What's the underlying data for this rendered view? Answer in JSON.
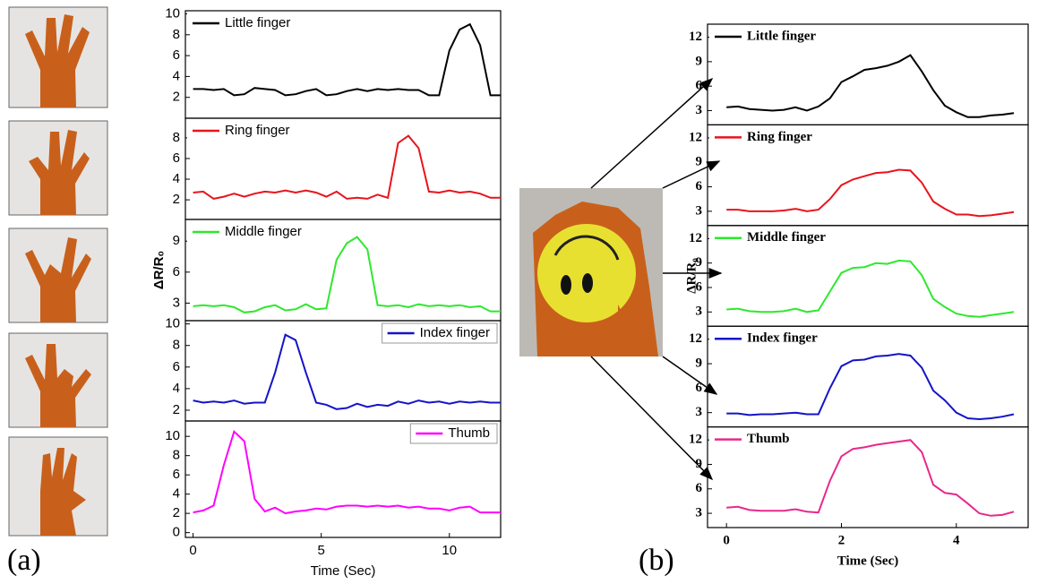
{
  "panel_labels": [
    "(a)",
    "(b)"
  ],
  "chart_data": [
    {
      "type": "line",
      "x": [
        0,
        0.4,
        0.8,
        1.2,
        1.6,
        2,
        2.4,
        2.8,
        3.2,
        3.6,
        4,
        4.4,
        4.8,
        5.2,
        5.6,
        6,
        6.4,
        6.8,
        7.2,
        7.6,
        8,
        8.4,
        8.8,
        9.2,
        9.6,
        10,
        10.4,
        10.8,
        11.2,
        11.6,
        12
      ],
      "xlim": [
        -0.3,
        12
      ],
      "ylim": [
        0,
        10.3
      ],
      "yticks": [
        2,
        4,
        6,
        8,
        10
      ],
      "legend": "upper left",
      "series": [
        {
          "name": "Little finger",
          "color": "#000000",
          "values": [
            2.8,
            2.8,
            2.7,
            2.8,
            2.2,
            2.3,
            2.9,
            2.8,
            2.7,
            2.2,
            2.3,
            2.6,
            2.8,
            2.2,
            2.3,
            2.6,
            2.8,
            2.6,
            2.8,
            2.7,
            2.8,
            2.7,
            2.7,
            2.2,
            2.2,
            6.5,
            8.5,
            9.0,
            7.0,
            2.2,
            2.2
          ]
        }
      ]
    },
    {
      "type": "line",
      "x": [
        0,
        0.4,
        0.8,
        1.2,
        1.6,
        2,
        2.4,
        2.8,
        3.2,
        3.6,
        4,
        4.4,
        4.8,
        5.2,
        5.6,
        6,
        6.4,
        6.8,
        7.2,
        7.6,
        8,
        8.4,
        8.8,
        9.2,
        9.6,
        10,
        10.4,
        10.8,
        11.2,
        11.6,
        12
      ],
      "xlim": [
        -0.3,
        12
      ],
      "ylim": [
        0.1,
        9.9
      ],
      "yticks": [
        2,
        4,
        6,
        8
      ],
      "legend": "upper left",
      "series": [
        {
          "name": "Ring finger",
          "color": "#e8141c",
          "values": [
            2.7,
            2.8,
            2.1,
            2.3,
            2.6,
            2.3,
            2.6,
            2.8,
            2.7,
            2.9,
            2.7,
            2.9,
            2.7,
            2.3,
            2.8,
            2.1,
            2.2,
            2.1,
            2.5,
            2.2,
            7.5,
            8.2,
            7.0,
            2.8,
            2.7,
            2.9,
            2.7,
            2.8,
            2.6,
            2.2,
            2.2
          ]
        }
      ]
    },
    {
      "type": "line",
      "x": [
        0,
        0.4,
        0.8,
        1.2,
        1.6,
        2,
        2.4,
        2.8,
        3.2,
        3.6,
        4,
        4.4,
        4.8,
        5.2,
        5.6,
        6,
        6.4,
        6.8,
        7.2,
        7.6,
        8,
        8.4,
        8.8,
        9.2,
        9.6,
        10,
        10.4,
        10.8,
        11.2,
        11.6,
        12
      ],
      "xlim": [
        -0.3,
        12
      ],
      "ylim": [
        1.3,
        11.1
      ],
      "yticks": [
        3,
        6,
        9
      ],
      "legend": "upper left",
      "ylabel": "ΔR/R₀",
      "series": [
        {
          "name": "Middle finger",
          "color": "#2ee82e",
          "values": [
            2.7,
            2.8,
            2.7,
            2.8,
            2.6,
            2.1,
            2.2,
            2.6,
            2.8,
            2.3,
            2.4,
            2.9,
            2.4,
            2.5,
            7.2,
            8.8,
            9.4,
            8.2,
            2.8,
            2.7,
            2.8,
            2.6,
            2.9,
            2.7,
            2.8,
            2.7,
            2.8,
            2.6,
            2.7,
            2.2,
            2.2
          ]
        }
      ]
    },
    {
      "type": "line",
      "x": [
        0,
        0.4,
        0.8,
        1.2,
        1.6,
        2,
        2.4,
        2.8,
        3.2,
        3.6,
        4,
        4.4,
        4.8,
        5.2,
        5.6,
        6,
        6.4,
        6.8,
        7.2,
        7.6,
        8,
        8.4,
        8.8,
        9.2,
        9.6,
        10,
        10.4,
        10.8,
        11.2,
        11.6,
        12
      ],
      "xlim": [
        -0.3,
        12
      ],
      "ylim": [
        1,
        10.3
      ],
      "yticks": [
        2,
        4,
        6,
        8,
        10
      ],
      "legend": "upper right",
      "series": [
        {
          "name": "Index finger",
          "color": "#1414c8",
          "values": [
            2.9,
            2.7,
            2.8,
            2.7,
            2.9,
            2.6,
            2.7,
            2.7,
            5.5,
            9.0,
            8.5,
            5.5,
            2.7,
            2.5,
            2.1,
            2.2,
            2.6,
            2.3,
            2.5,
            2.4,
            2.8,
            2.6,
            2.9,
            2.7,
            2.8,
            2.6,
            2.8,
            2.7,
            2.8,
            2.7,
            2.7
          ]
        }
      ]
    },
    {
      "type": "line",
      "x": [
        0,
        0.4,
        0.8,
        1.2,
        1.6,
        2,
        2.4,
        2.8,
        3.2,
        3.6,
        4,
        4.4,
        4.8,
        5.2,
        5.6,
        6,
        6.4,
        6.8,
        7.2,
        7.6,
        8,
        8.4,
        8.8,
        9.2,
        9.6,
        10,
        10.4,
        10.8,
        11.2,
        11.6,
        12
      ],
      "xlim": [
        -0.3,
        12
      ],
      "ylim": [
        -0.5,
        11.6
      ],
      "yticks": [
        0,
        2,
        4,
        6,
        8,
        10
      ],
      "legend": "upper right",
      "xticks": [
        0,
        5,
        10
      ],
      "xlabel": "Time (Sec)",
      "series": [
        {
          "name": "Thumb",
          "color": "#ff00ff",
          "values": [
            2.1,
            2.3,
            2.8,
            7.0,
            10.5,
            9.5,
            3.5,
            2.2,
            2.6,
            2.0,
            2.2,
            2.3,
            2.5,
            2.4,
            2.7,
            2.8,
            2.8,
            2.7,
            2.8,
            2.7,
            2.8,
            2.6,
            2.7,
            2.5,
            2.5,
            2.3,
            2.6,
            2.7,
            2.1,
            2.1,
            2.1
          ]
        }
      ]
    },
    {
      "type": "line",
      "x": [
        0,
        0.2,
        0.4,
        0.6,
        0.8,
        1,
        1.2,
        1.4,
        1.6,
        1.8,
        2,
        2.2,
        2.4,
        2.6,
        2.8,
        3,
        3.2,
        3.4,
        3.6,
        3.8,
        4,
        4.2,
        4.4,
        4.6,
        4.8,
        5
      ],
      "xlim": [
        -0.33,
        5.25
      ],
      "ylim": [
        1.25,
        13.6
      ],
      "yticks": [
        3,
        6,
        9,
        12
      ],
      "legend": "upper left",
      "series": [
        {
          "name": "Little finger",
          "color": "#000000",
          "values": [
            3.4,
            3.5,
            3.2,
            3.1,
            3.0,
            3.1,
            3.4,
            3.0,
            3.5,
            4.5,
            6.5,
            7.2,
            8,
            8.2,
            8.5,
            9,
            9.8,
            7.8,
            5.5,
            3.6,
            2.8,
            2.2,
            2.2,
            2.4,
            2.5,
            2.7
          ]
        }
      ]
    },
    {
      "type": "line",
      "x": [
        0,
        0.2,
        0.4,
        0.6,
        0.8,
        1,
        1.2,
        1.4,
        1.6,
        1.8,
        2,
        2.2,
        2.4,
        2.6,
        2.8,
        3,
        3.2,
        3.4,
        3.6,
        3.8,
        4,
        4.2,
        4.4,
        4.6,
        4.8,
        5
      ],
      "xlim": [
        -0.33,
        5.25
      ],
      "ylim": [
        1.25,
        13.6
      ],
      "yticks": [
        3,
        6,
        9,
        12
      ],
      "legend": "upper left",
      "series": [
        {
          "name": "Ring finger",
          "color": "#e8141c",
          "values": [
            3.2,
            3.2,
            3.0,
            3.0,
            3.0,
            3.1,
            3.3,
            3.0,
            3.2,
            4.5,
            6.2,
            6.9,
            7.3,
            7.7,
            7.8,
            8.1,
            8.0,
            6.5,
            4.2,
            3.3,
            2.6,
            2.6,
            2.4,
            2.5,
            2.7,
            2.9
          ]
        }
      ]
    },
    {
      "type": "line",
      "x": [
        0,
        0.2,
        0.4,
        0.6,
        0.8,
        1,
        1.2,
        1.4,
        1.6,
        1.8,
        2,
        2.2,
        2.4,
        2.6,
        2.8,
        3,
        3.2,
        3.4,
        3.6,
        3.8,
        4,
        4.2,
        4.4,
        4.6,
        4.8,
        5
      ],
      "xlim": [
        -0.33,
        5.25
      ],
      "ylim": [
        1.25,
        13.6
      ],
      "yticks": [
        3,
        6,
        9,
        12
      ],
      "legend": "upper left",
      "ylabel": "ΔR/R₀",
      "series": [
        {
          "name": "Middle finger",
          "color": "#2ee82e",
          "values": [
            3.3,
            3.4,
            3.1,
            3.0,
            3.0,
            3.1,
            3.4,
            3.0,
            3.2,
            5.5,
            7.8,
            8.4,
            8.5,
            9.0,
            8.9,
            9.3,
            9.2,
            7.5,
            4.6,
            3.6,
            2.8,
            2.5,
            2.4,
            2.6,
            2.8,
            3.0
          ]
        }
      ]
    },
    {
      "type": "line",
      "x": [
        0,
        0.2,
        0.4,
        0.6,
        0.8,
        1,
        1.2,
        1.4,
        1.6,
        1.8,
        2,
        2.2,
        2.4,
        2.6,
        2.8,
        3,
        3.2,
        3.4,
        3.6,
        3.8,
        4,
        4.2,
        4.4,
        4.6,
        4.8,
        5
      ],
      "xlim": [
        -0.33,
        5.25
      ],
      "ylim": [
        1.25,
        13.6
      ],
      "yticks": [
        3,
        6,
        9,
        12
      ],
      "legend": "upper left",
      "series": [
        {
          "name": "Index finger",
          "color": "#1414c8",
          "values": [
            2.9,
            2.9,
            2.7,
            2.8,
            2.8,
            2.9,
            3.0,
            2.8,
            2.8,
            6.0,
            8.7,
            9.4,
            9.5,
            9.9,
            10.0,
            10.2,
            10.0,
            8.5,
            5.7,
            4.5,
            3.0,
            2.3,
            2.2,
            2.3,
            2.5,
            2.8
          ]
        }
      ]
    },
    {
      "type": "line",
      "x": [
        0,
        0.2,
        0.4,
        0.6,
        0.8,
        1,
        1.2,
        1.4,
        1.6,
        1.8,
        2,
        2.2,
        2.4,
        2.6,
        2.8,
        3,
        3.2,
        3.4,
        3.6,
        3.8,
        4,
        4.2,
        4.4,
        4.6,
        4.8,
        5
      ],
      "xlim": [
        -0.33,
        5.25
      ],
      "ylim": [
        1.25,
        13.6
      ],
      "yticks": [
        3,
        6,
        9,
        12
      ],
      "legend": "upper left",
      "xticks": [
        0,
        2,
        4
      ],
      "xlabel": "Time (Sec)",
      "series": [
        {
          "name": "Thumb",
          "color": "#e8288c",
          "values": [
            3.7,
            3.8,
            3.4,
            3.3,
            3.3,
            3.3,
            3.5,
            3.2,
            3.1,
            7,
            10,
            10.9,
            11.1,
            11.4,
            11.6,
            11.8,
            12,
            10.5,
            6.5,
            5.5,
            5.3,
            4.2,
            3.0,
            2.7,
            2.8,
            3.2
          ]
        }
      ]
    }
  ]
}
